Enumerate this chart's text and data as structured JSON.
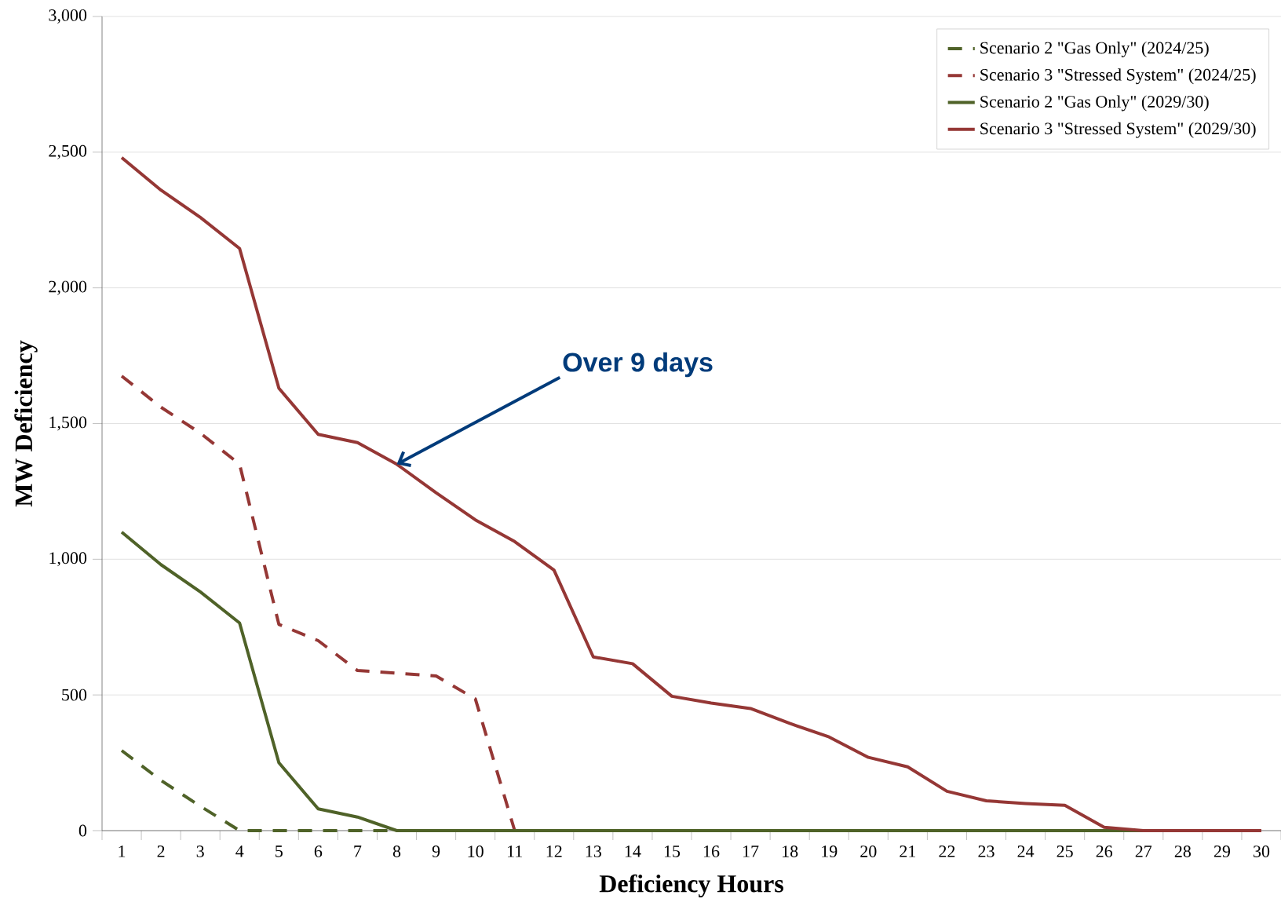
{
  "chart_data": {
    "type": "line",
    "xlabel": "Deficiency Hours",
    "ylabel": "MW Deficiency",
    "categories": [
      "1",
      "2",
      "3",
      "4",
      "5",
      "6",
      "7",
      "8",
      "9",
      "10",
      "11",
      "12",
      "13",
      "14",
      "15",
      "16",
      "17",
      "18",
      "19",
      "20",
      "21",
      "22",
      "23",
      "24",
      "25",
      "26",
      "27",
      "28",
      "29",
      "30"
    ],
    "series": [
      {
        "name": "Scenario 2 \"Gas Only\" (2024/25)",
        "color": "#4f6228",
        "line_style": "dashed",
        "values": [
          295,
          185,
          90,
          0,
          0,
          0,
          0,
          0,
          null,
          null,
          null,
          null,
          null,
          null,
          null,
          null,
          null,
          null,
          null,
          null,
          null,
          null,
          null,
          null,
          null,
          null,
          null,
          null,
          null,
          null
        ]
      },
      {
        "name": "Scenario 3 \"Stressed System\" (2024/25)",
        "color": "#953735",
        "line_style": "dashed",
        "values": [
          1675,
          1560,
          1465,
          1350,
          760,
          700,
          590,
          580,
          570,
          485,
          0,
          null,
          null,
          null,
          null,
          null,
          null,
          null,
          null,
          null,
          null,
          null,
          null,
          null,
          null,
          null,
          null,
          null,
          null,
          null
        ]
      },
      {
        "name": "Scenario 2 \"Gas Only\" (2029/30)",
        "color": "#4f6228",
        "line_style": "solid",
        "values": [
          1100,
          980,
          880,
          765,
          250,
          80,
          50,
          0,
          0,
          0,
          0,
          0,
          0,
          0,
          0,
          0,
          0,
          0,
          0,
          0,
          0,
          0,
          0,
          0,
          0,
          0,
          0,
          null,
          null,
          null
        ]
      },
      {
        "name": "Scenario 3 \"Stressed System\" (2029/30)",
        "color": "#953735",
        "line_style": "solid",
        "values": [
          2480,
          2360,
          2260,
          2145,
          1630,
          1460,
          1430,
          1350,
          1245,
          1145,
          1065,
          960,
          640,
          615,
          495,
          470,
          450,
          395,
          345,
          270,
          235,
          145,
          110,
          100,
          93,
          12,
          0,
          0,
          0,
          0
        ]
      }
    ],
    "ylim": [
      0,
      3000
    ],
    "yticks": [
      0,
      500,
      {
        "value": 1000,
        "label": "1,000"
      },
      {
        "value": 1500,
        "label": "1,500"
      },
      {
        "value": 2000,
        "label": "2,000"
      },
      {
        "value": 2500,
        "label": "2,500"
      },
      {
        "value": 3000,
        "label": "3,000"
      }
    ],
    "grid": "y",
    "legend": "top right",
    "marker": "none",
    "annotations": [
      {
        "text": "Over 9 days",
        "x": "8",
        "y": 1350
      }
    ]
  }
}
